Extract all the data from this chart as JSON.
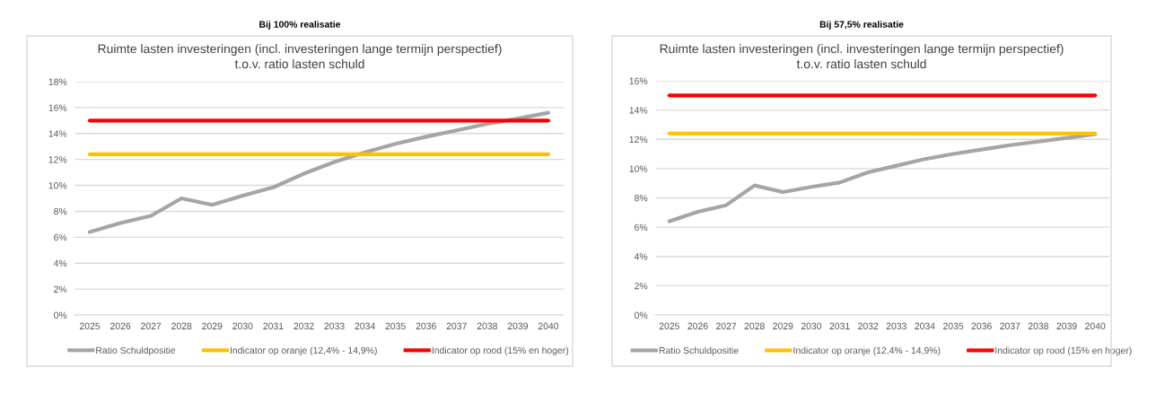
{
  "chart_data": [
    {
      "type": "line",
      "title": "Bij 100% realisatie",
      "subtitle": "Ruimte lasten investeringen (incl. investeringen lange termijn perspectief)\nt.o.v. ratio lasten schuld",
      "categories": [
        "2025",
        "2026",
        "2027",
        "2028",
        "2029",
        "2030",
        "2031",
        "2032",
        "2033",
        "2034",
        "2035",
        "2036",
        "2037",
        "2038",
        "2039",
        "2040"
      ],
      "series": [
        {
          "name": "Ratio Schuldpositie",
          "color": "#a5a5a5",
          "values": [
            6.4,
            7.1,
            7.65,
            9.0,
            8.5,
            9.2,
            9.85,
            10.9,
            11.8,
            12.55,
            13.2,
            13.75,
            14.25,
            14.75,
            15.15,
            15.6
          ]
        },
        {
          "name": "Indicator op oranje (12,4% - 14,9%)",
          "color": "#ffc000",
          "values": [
            12.4,
            12.4,
            12.4,
            12.4,
            12.4,
            12.4,
            12.4,
            12.4,
            12.4,
            12.4,
            12.4,
            12.4,
            12.4,
            12.4,
            12.4,
            12.4
          ]
        },
        {
          "name": "Indicator op rood (15% en hoger)",
          "color": "#ff0000",
          "values": [
            15,
            15,
            15,
            15,
            15,
            15,
            15,
            15,
            15,
            15,
            15,
            15,
            15,
            15,
            15,
            15
          ]
        }
      ],
      "ylim": [
        0,
        18
      ],
      "yticks": [
        {
          "value": 0,
          "label": "0%"
        },
        {
          "value": 2,
          "label": "2%"
        },
        {
          "value": 4,
          "label": "4%"
        },
        {
          "value": 6,
          "label": "6%"
        },
        {
          "value": 8,
          "label": "8%"
        },
        {
          "value": 10,
          "label": "10%"
        },
        {
          "value": 12,
          "label": "12%"
        },
        {
          "value": 14,
          "label": "14%"
        },
        {
          "value": 16,
          "label": "16%"
        },
        {
          "value": 18,
          "label": "18%"
        }
      ],
      "grid": "y",
      "legend": "bottom",
      "marker": "none",
      "line_style": "solid"
    },
    {
      "type": "line",
      "title": "Bij 57,5% realisatie",
      "subtitle": "Ruimte lasten investeringen (incl. investeringen lange termijn perspectief)\nt.o.v. ratio lasten schuld",
      "categories": [
        "2025",
        "2026",
        "2027",
        "2028",
        "2029",
        "2030",
        "2031",
        "2032",
        "2033",
        "2034",
        "2035",
        "2036",
        "2037",
        "2038",
        "2039",
        "2040"
      ],
      "series": [
        {
          "name": "Ratio Schuldpositie",
          "color": "#a5a5a5",
          "values": [
            6.4,
            7.05,
            7.5,
            8.85,
            8.4,
            8.75,
            9.05,
            9.75,
            10.2,
            10.65,
            11.0,
            11.3,
            11.6,
            11.85,
            12.1,
            12.35
          ]
        },
        {
          "name": "Indicator op oranje (12,4% - 14,9%)",
          "color": "#ffc000",
          "values": [
            12.4,
            12.4,
            12.4,
            12.4,
            12.4,
            12.4,
            12.4,
            12.4,
            12.4,
            12.4,
            12.4,
            12.4,
            12.4,
            12.4,
            12.4,
            12.4
          ]
        },
        {
          "name": "Indicator op rood (15% en hoger)",
          "color": "#ff0000",
          "values": [
            15,
            15,
            15,
            15,
            15,
            15,
            15,
            15,
            15,
            15,
            15,
            15,
            15,
            15,
            15,
            15
          ]
        }
      ],
      "ylim": [
        0,
        16
      ],
      "yticks": [
        {
          "value": 0,
          "label": "0%"
        },
        {
          "value": 2,
          "label": "2%"
        },
        {
          "value": 4,
          "label": "4%"
        },
        {
          "value": 6,
          "label": "6%"
        },
        {
          "value": 8,
          "label": "8%"
        },
        {
          "value": 10,
          "label": "10%"
        },
        {
          "value": 12,
          "label": "12%"
        },
        {
          "value": 14,
          "label": "14%"
        },
        {
          "value": 16,
          "label": "16%"
        }
      ],
      "grid": "y",
      "legend": "bottom",
      "marker": "none",
      "line_style": "solid"
    }
  ]
}
